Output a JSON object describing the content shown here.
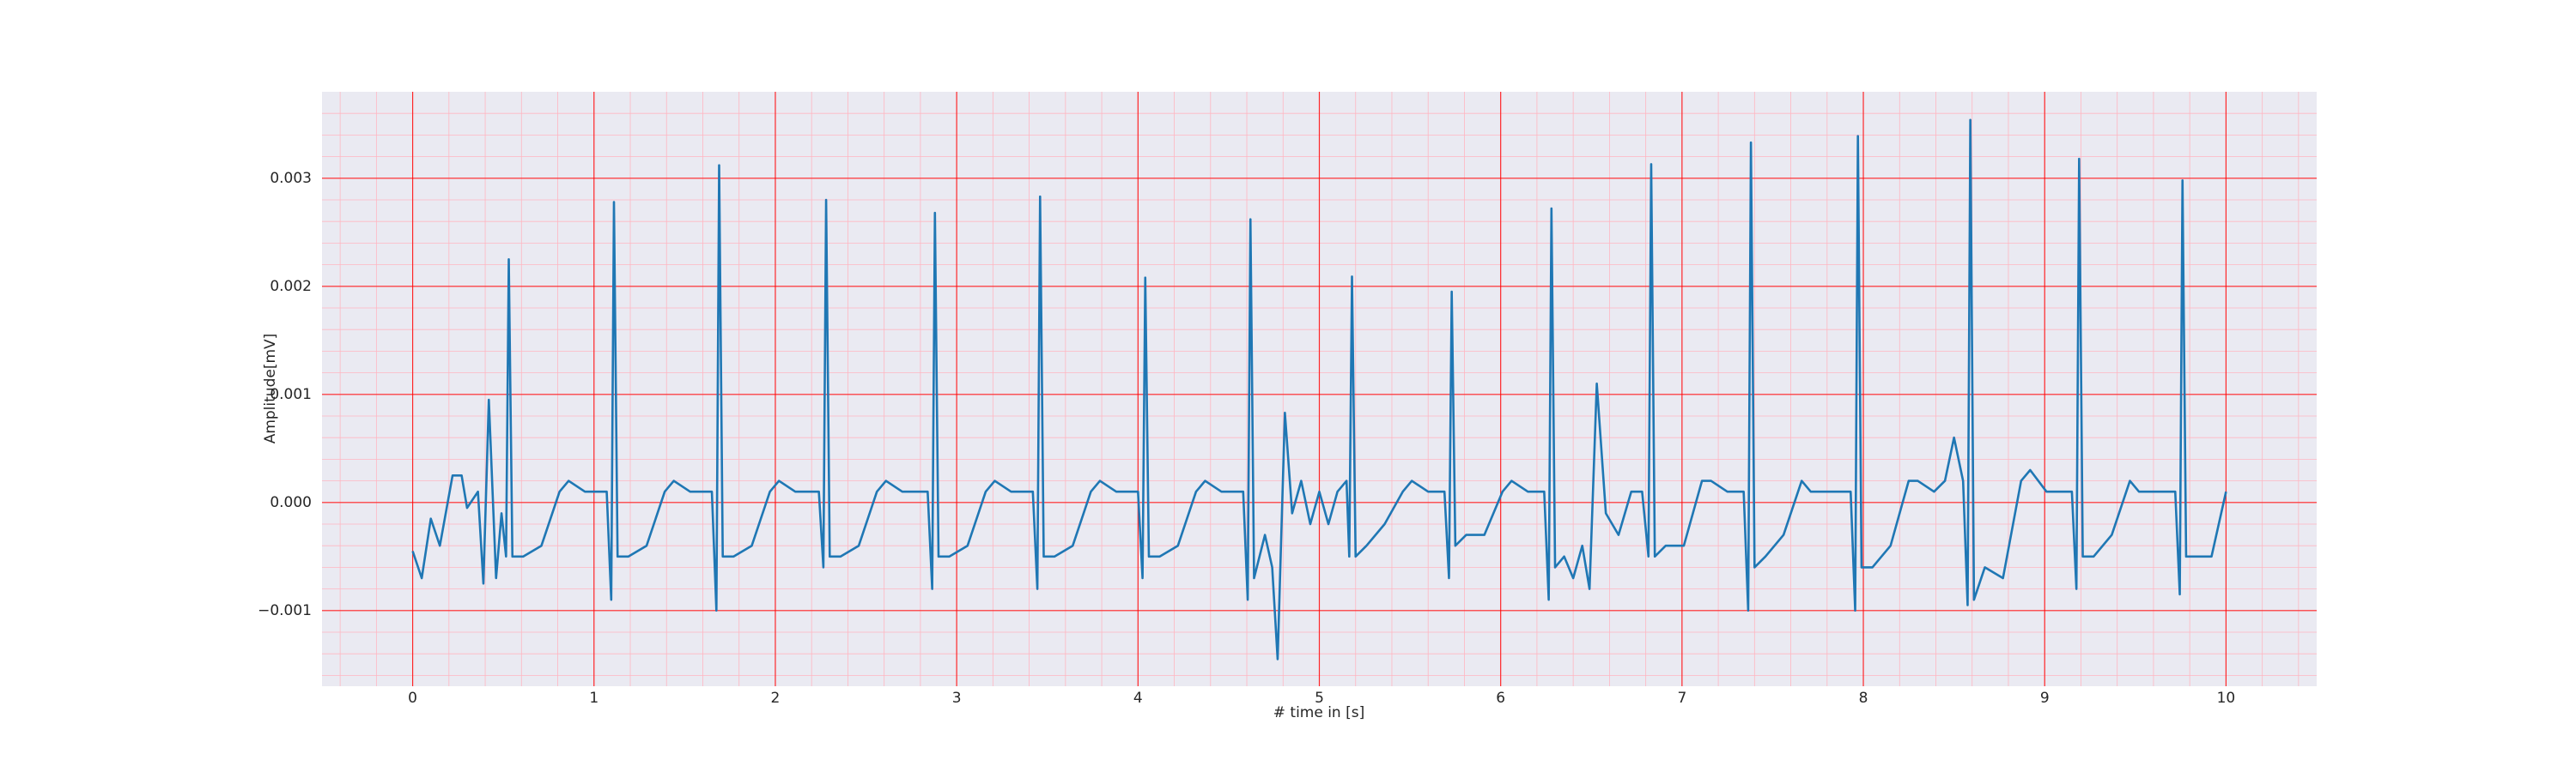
{
  "chart_data": {
    "type": "line",
    "xlabel": "# time in [s]",
    "ylabel": "Amplitude[mV]",
    "xlim": [
      -0.5,
      10.5
    ],
    "ylim": [
      -0.0017,
      0.0038
    ],
    "xticks": [
      0,
      1,
      2,
      3,
      4,
      5,
      6,
      7,
      8,
      9,
      10
    ],
    "yticks": [
      {
        "value": -0.001,
        "label": "−0.001"
      },
      {
        "value": 0,
        "label": "0.000"
      },
      0.001,
      0.002,
      0.003
    ],
    "grid": true,
    "minor_grid": true,
    "series": [
      {
        "color": "#1f77b4",
        "x": [
          0,
          0.05,
          0.1,
          0.15,
          0.22,
          0.27,
          0.3,
          0.36,
          0.39,
          0.42,
          0.46,
          0.49,
          0.515,
          0.53,
          0.55,
          0.61,
          0.71,
          0.81,
          0.86,
          0.95,
          1.07,
          1.095,
          1.11,
          1.13,
          1.19,
          1.29,
          1.39,
          1.44,
          1.53,
          1.65,
          1.675,
          1.69,
          1.71,
          1.77,
          1.87,
          1.97,
          2.02,
          2.11,
          2.24,
          2.265,
          2.28,
          2.3,
          2.36,
          2.46,
          2.56,
          2.61,
          2.7,
          2.84,
          2.865,
          2.88,
          2.9,
          2.96,
          3.06,
          3.16,
          3.21,
          3.3,
          3.42,
          3.445,
          3.46,
          3.48,
          3.54,
          3.64,
          3.74,
          3.79,
          3.88,
          4.0,
          4.025,
          4.04,
          4.06,
          4.12,
          4.22,
          4.32,
          4.37,
          4.46,
          4.58,
          4.605,
          4.62,
          4.64,
          4.7,
          4.74,
          4.77,
          4.81,
          4.85,
          4.9,
          4.95,
          5.0,
          5.05,
          5.1,
          5.15,
          5.165,
          5.18,
          5.2,
          5.26,
          5.36,
          5.46,
          5.51,
          5.6,
          5.69,
          5.715,
          5.73,
          5.75,
          5.81,
          5.91,
          6.01,
          6.06,
          6.15,
          6.24,
          6.265,
          6.28,
          6.3,
          6.35,
          6.4,
          6.45,
          6.49,
          6.53,
          6.58,
          6.65,
          6.72,
          6.78,
          6.815,
          6.83,
          6.85,
          6.91,
          7.01,
          7.11,
          7.16,
          7.25,
          7.34,
          7.365,
          7.38,
          7.4,
          7.46,
          7.56,
          7.66,
          7.71,
          7.8,
          7.93,
          7.955,
          7.97,
          7.99,
          8.05,
          8.15,
          8.25,
          8.3,
          8.39,
          8.45,
          8.5,
          8.55,
          8.575,
          8.59,
          8.61,
          8.67,
          8.77,
          8.87,
          8.92,
          9.01,
          9.15,
          9.175,
          9.19,
          9.21,
          9.27,
          9.37,
          9.47,
          9.52,
          9.61,
          9.72,
          9.745,
          9.76,
          9.78,
          9.84,
          9.92,
          10.0
        ],
        "values": [
          -0.00045,
          -0.0007,
          -0.00015,
          -0.0004,
          0.00025,
          0.00025,
          -5e-05,
          0.0001,
          -0.00075,
          0.00095,
          -0.0007,
          -0.0001,
          -0.0005,
          0.00225,
          -0.0005,
          -0.0005,
          -0.0004,
          0.0001,
          0.0002,
          0.0001,
          0.0001,
          -0.0009,
          0.00278,
          -0.0005,
          -0.0005,
          -0.0004,
          0.0001,
          0.0002,
          0.0001,
          0.0001,
          -0.001,
          0.00312,
          -0.0005,
          -0.0005,
          -0.0004,
          0.0001,
          0.0002,
          0.0001,
          0.0001,
          -0.0006,
          0.0028,
          -0.0005,
          -0.0005,
          -0.0004,
          0.0001,
          0.0002,
          0.0001,
          0.0001,
          -0.0008,
          0.00268,
          -0.0005,
          -0.0005,
          -0.0004,
          0.0001,
          0.0002,
          0.0001,
          0.0001,
          -0.0008,
          0.00283,
          -0.0005,
          -0.0005,
          -0.0004,
          0.0001,
          0.0002,
          0.0001,
          0.0001,
          -0.0007,
          0.00208,
          -0.0005,
          -0.0005,
          -0.0004,
          0.0001,
          0.0002,
          0.0001,
          0.0001,
          -0.0009,
          0.00262,
          -0.0007,
          -0.0003,
          -0.0006,
          -0.00145,
          0.00083,
          -0.0001,
          0.0002,
          -0.0002,
          0.0001,
          -0.0002,
          0.0001,
          0.0002,
          -0.0005,
          0.00209,
          -0.0005,
          -0.0004,
          -0.0002,
          0.0001,
          0.0002,
          0.0001,
          0.0001,
          -0.0007,
          0.00195,
          -0.0004,
          -0.0003,
          -0.0003,
          0.0001,
          0.0002,
          0.0001,
          0.0001,
          -0.0009,
          0.00272,
          -0.0006,
          -0.0005,
          -0.0007,
          -0.0004,
          -0.0008,
          0.0011,
          -0.0001,
          -0.0003,
          0.0001,
          0.0001,
          -0.0005,
          0.00313,
          -0.0005,
          -0.0004,
          -0.0004,
          0.0002,
          0.0002,
          0.0001,
          0.0001,
          -0.001,
          0.00333,
          -0.0006,
          -0.0005,
          -0.0003,
          0.0002,
          0.0001,
          0.0001,
          0.0001,
          -0.001,
          0.00339,
          -0.0006,
          -0.0006,
          -0.0004,
          0.0002,
          0.0002,
          0.0001,
          0.0002,
          0.0006,
          0.0002,
          -0.00095,
          0.00354,
          -0.0009,
          -0.0006,
          -0.0007,
          0.0002,
          0.0003,
          0.0001,
          0.0001,
          -0.0008,
          0.00318,
          -0.0005,
          -0.0005,
          -0.0003,
          0.0002,
          0.0001,
          0.0001,
          0.0001,
          -0.00085,
          0.00298,
          -0.0005,
          -0.0005,
          -0.0005,
          0.0001
        ]
      }
    ]
  }
}
